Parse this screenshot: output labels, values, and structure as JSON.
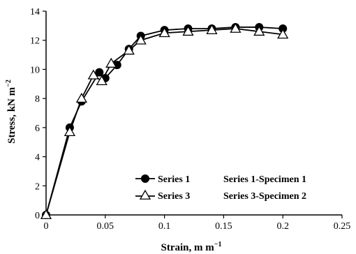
{
  "chart_data": {
    "type": "line",
    "xlabel": "Strain, m m",
    "xlabel_sup": "−1",
    "ylabel": "Stress, kN m",
    "ylabel_sup": "−2",
    "xlim": [
      0,
      0.25
    ],
    "ylim": [
      0,
      14
    ],
    "x_ticks": [
      0,
      0.05,
      0.1,
      0.15,
      0.2,
      0.25
    ],
    "x_tick_labels": [
      "0",
      "0.05",
      "0.1",
      "0.15",
      "0.2",
      "0.25"
    ],
    "y_ticks": [
      0,
      2,
      4,
      6,
      8,
      10,
      12,
      14
    ],
    "y_tick_labels": [
      "0",
      "2",
      "4",
      "6",
      "8",
      "10",
      "12",
      "14"
    ],
    "grid": false,
    "legend_position": "bottom-right",
    "series": [
      {
        "name": "Series 1",
        "marker": "circle",
        "color": "#000000",
        "x": [
          0,
          0.02,
          0.03,
          0.045,
          0.05,
          0.06,
          0.07,
          0.08,
          0.1,
          0.12,
          0.14,
          0.16,
          0.18,
          0.2
        ],
        "y": [
          0,
          6.0,
          7.8,
          9.8,
          9.4,
          10.3,
          11.4,
          12.3,
          12.7,
          12.8,
          12.8,
          12.9,
          12.9,
          12.8
        ]
      },
      {
        "name": "Series 3",
        "marker": "triangle",
        "color": "#000000",
        "x": [
          0,
          0.02,
          0.03,
          0.04,
          0.047,
          0.055,
          0.07,
          0.08,
          0.1,
          0.12,
          0.14,
          0.16,
          0.18,
          0.2
        ],
        "y": [
          0,
          5.7,
          8.0,
          9.6,
          9.2,
          10.4,
          11.3,
          12.0,
          12.5,
          12.6,
          12.7,
          12.8,
          12.6,
          12.4
        ]
      }
    ],
    "legend_extra_labels": [
      "Series 1-Specimen 1",
      "Series 3-Specimen 2"
    ]
  }
}
